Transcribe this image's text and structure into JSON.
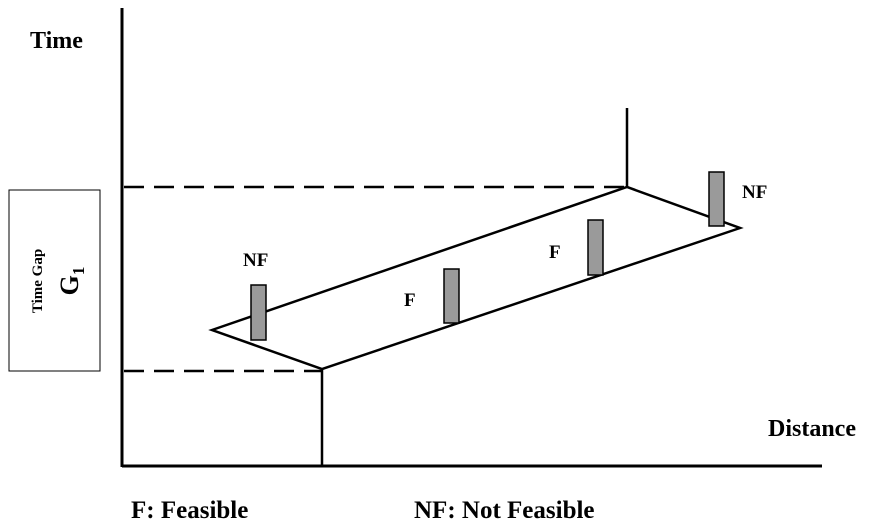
{
  "axes": {
    "y_label": "Time",
    "x_label": "Distance"
  },
  "gap": {
    "title": "Time Gap",
    "symbol": "G",
    "subscript": "1"
  },
  "regions": [
    {
      "label": "NF",
      "status": "not-feasible"
    },
    {
      "label": "F",
      "status": "feasible"
    },
    {
      "label": "F",
      "status": "feasible"
    },
    {
      "label": "NF",
      "status": "not-feasible"
    }
  ],
  "legend": {
    "feasible": "F: Feasible",
    "not_feasible": "NF: Not Feasible"
  },
  "colors": {
    "bar_fill": "#9a9a9a",
    "line": "#000000"
  }
}
